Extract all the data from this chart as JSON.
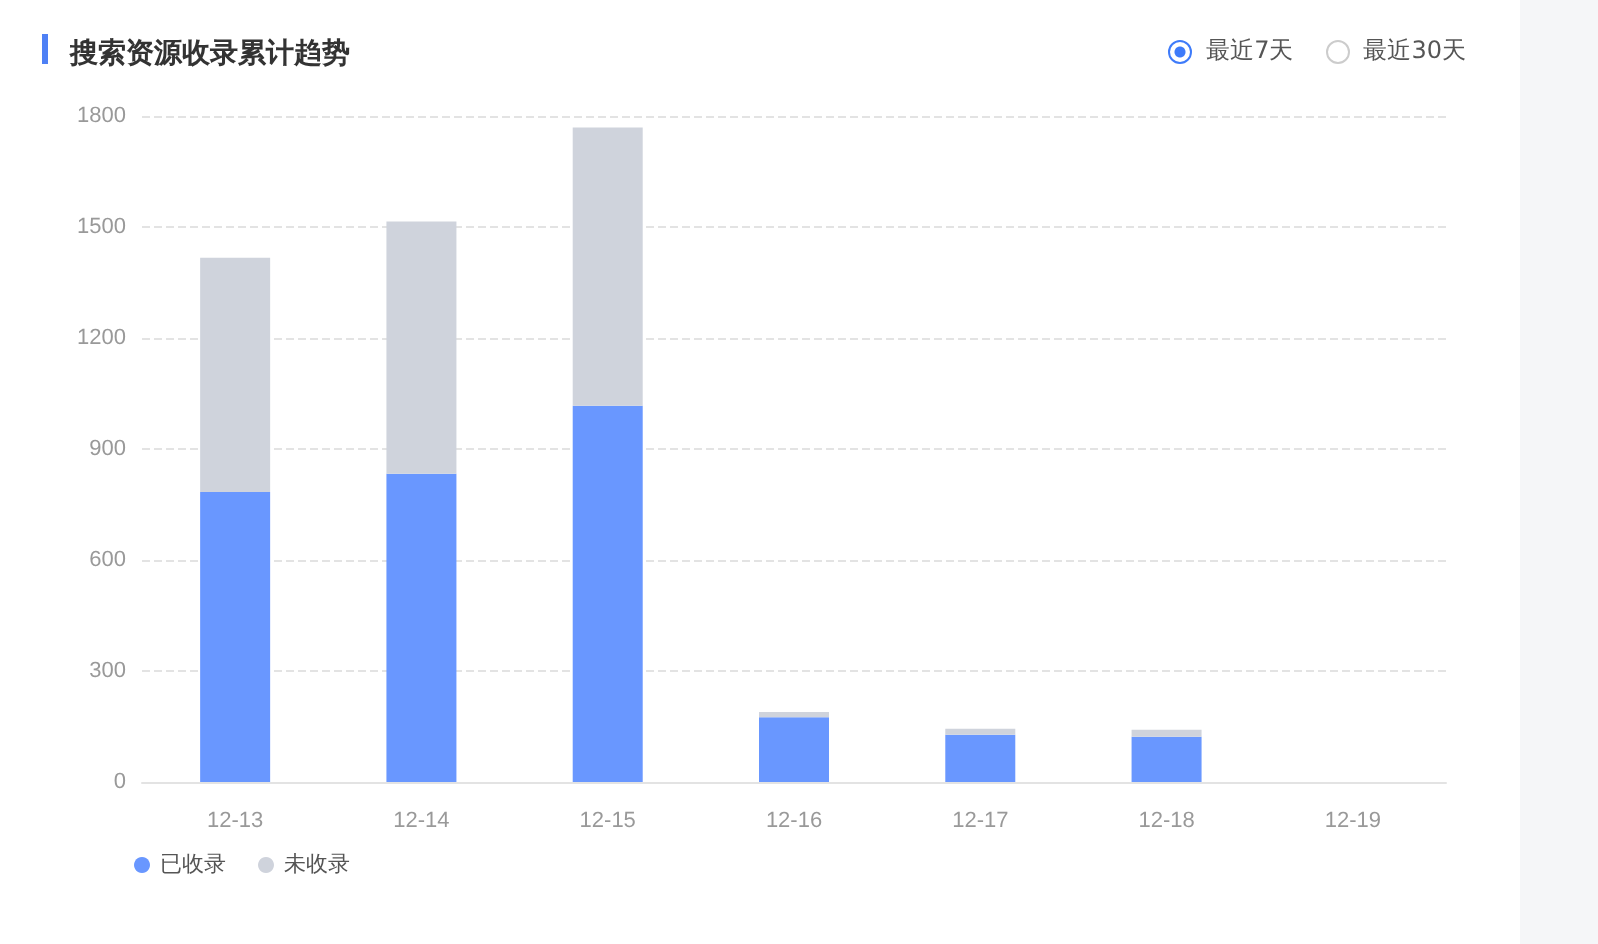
{
  "chart_data": {
    "type": "bar",
    "title": "搜索资源收录累计趋势",
    "annotations": [
      "最近7天",
      "最近30天"
    ],
    "categories": [
      "12-13",
      "12-14",
      "12-15",
      "12-16",
      "12-17",
      "12-18",
      "12-19"
    ],
    "series": [
      {
        "name": "已收录",
        "color": "#6997ff",
        "values": [
          784,
          833,
          1017,
          175,
          128,
          122,
          0
        ]
      },
      {
        "name": "未收录",
        "color": "#cfd3dc",
        "values": [
          633,
          682,
          752,
          14,
          16,
          19,
          0
        ]
      }
    ],
    "stacked": true,
    "ylim": [
      0,
      1800
    ],
    "yticks": [
      0,
      300,
      600,
      900,
      1200,
      1500,
      1800
    ],
    "grid": "y",
    "legend": "bottom left"
  }
}
